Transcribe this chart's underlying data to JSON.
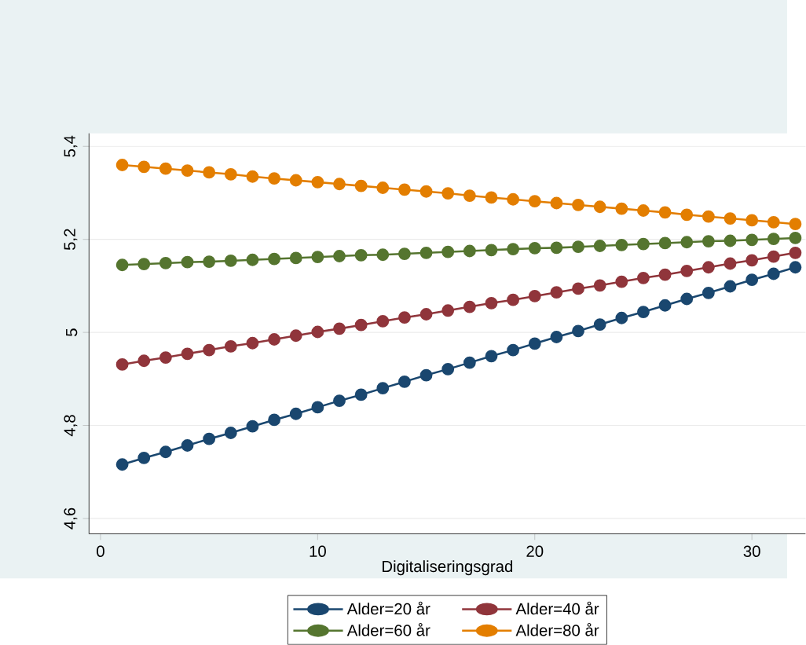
{
  "chart_data": {
    "type": "line",
    "xlabel": "Digitaliseringsgrad",
    "x": [
      1,
      2,
      3,
      4,
      5,
      6,
      7,
      8,
      9,
      10,
      11,
      12,
      13,
      14,
      15,
      16,
      17,
      18,
      19,
      20,
      21,
      22,
      23,
      24,
      25,
      26,
      27,
      28,
      29,
      30,
      31,
      32
    ],
    "series": [
      {
        "name": "Alder=20 år",
        "color": "#1a476f",
        "values": [
          4.716,
          4.73,
          4.743,
          4.757,
          4.771,
          4.784,
          4.798,
          4.812,
          4.825,
          4.839,
          4.853,
          4.866,
          4.88,
          4.894,
          4.908,
          4.921,
          4.935,
          4.949,
          4.962,
          4.976,
          4.99,
          5.003,
          5.017,
          5.031,
          5.044,
          5.058,
          5.072,
          5.085,
          5.099,
          5.113,
          5.126,
          5.14
        ]
      },
      {
        "name": "Alder=40 år",
        "color": "#90353b",
        "values": [
          4.931,
          4.939,
          4.946,
          4.954,
          4.962,
          4.97,
          4.977,
          4.985,
          4.993,
          5.001,
          5.008,
          5.016,
          5.024,
          5.032,
          5.039,
          5.047,
          5.055,
          5.063,
          5.07,
          5.078,
          5.086,
          5.094,
          5.101,
          5.109,
          5.117,
          5.124,
          5.132,
          5.14,
          5.148,
          5.155,
          5.163,
          5.171
        ]
      },
      {
        "name": "Alder=60 år",
        "color": "#55752f",
        "values": [
          5.145,
          5.147,
          5.149,
          5.151,
          5.152,
          5.154,
          5.156,
          5.158,
          5.16,
          5.162,
          5.164,
          5.166,
          5.167,
          5.169,
          5.171,
          5.173,
          5.175,
          5.177,
          5.179,
          5.181,
          5.182,
          5.184,
          5.186,
          5.188,
          5.19,
          5.192,
          5.194,
          5.196,
          5.197,
          5.199,
          5.201,
          5.203
        ]
      },
      {
        "name": "Alder=80 år",
        "color": "#e37e00",
        "values": [
          5.36,
          5.356,
          5.352,
          5.348,
          5.344,
          5.34,
          5.335,
          5.331,
          5.327,
          5.323,
          5.319,
          5.315,
          5.311,
          5.307,
          5.303,
          5.299,
          5.294,
          5.29,
          5.286,
          5.282,
          5.278,
          5.274,
          5.27,
          5.266,
          5.262,
          5.258,
          5.253,
          5.249,
          5.245,
          5.241,
          5.237,
          5.233
        ]
      }
    ],
    "xlim": [
      -0.53,
      32.47
    ],
    "ylim": [
      4.567,
      5.428
    ],
    "xticks": [
      0,
      10,
      20,
      30
    ],
    "yticks": [
      {
        "value": 4.6,
        "label": "4,6"
      },
      {
        "value": 4.8,
        "label": "4,8"
      },
      5,
      {
        "value": 5.2,
        "label": "5,2"
      },
      {
        "value": 5.4,
        "label": "5,4"
      }
    ],
    "grid": "y",
    "legend": "bottom",
    "marker": "circle",
    "line_style": "solid"
  }
}
